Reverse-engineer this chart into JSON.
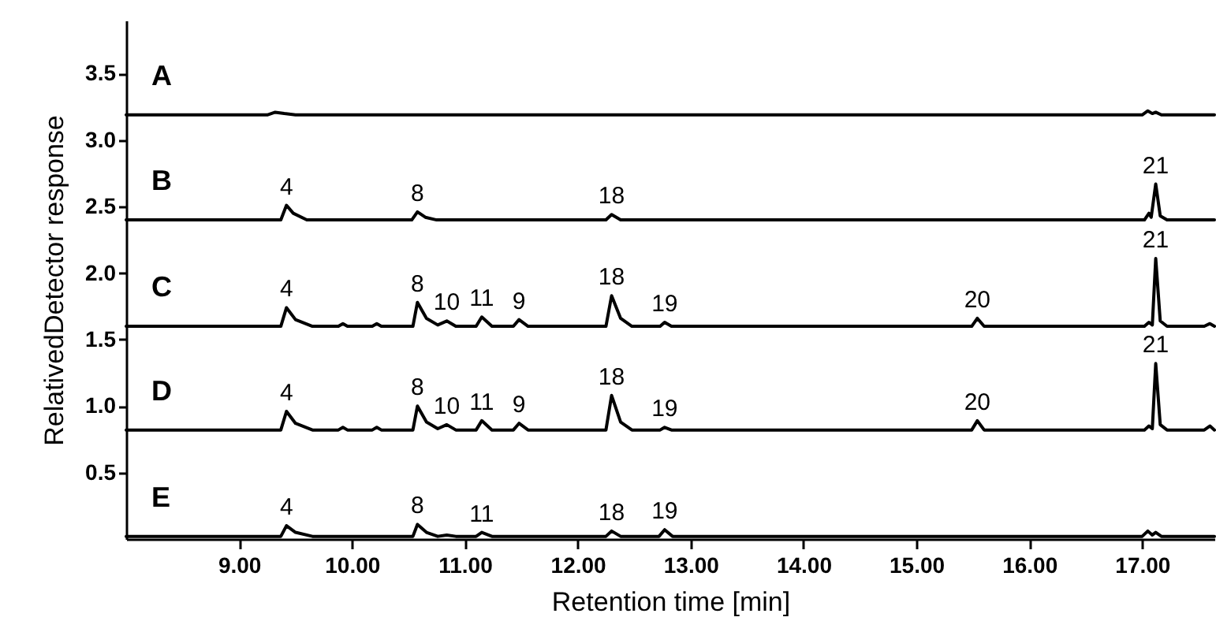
{
  "chart_data": {
    "type": "line",
    "xlabel": "Retention time [min]",
    "ylabel": "RelativedDetector response",
    "xlim": [
      8.0,
      17.64
    ],
    "ylim": [
      0,
      3.9
    ],
    "xticks": [
      {
        "value": 9,
        "label": "9.00"
      },
      {
        "value": 10,
        "label": "10.00"
      },
      {
        "value": 11,
        "label": "11.00"
      },
      {
        "value": 12,
        "label": "12.00"
      },
      {
        "value": 13,
        "label": "13.00"
      },
      {
        "value": 14,
        "label": "14.00"
      },
      {
        "value": 15,
        "label": "15.00"
      },
      {
        "value": 16,
        "label": "16.00"
      },
      {
        "value": 17,
        "label": "17.00"
      }
    ],
    "yticks": [
      0.5,
      {
        "value": 1,
        "label": "1.0"
      },
      1.5,
      {
        "value": 2,
        "label": "2.0"
      },
      2.5,
      {
        "value": 3,
        "label": "3.0"
      },
      3.5
    ],
    "grid": false,
    "marker": "none",
    "line_style": "solid",
    "series": [
      {
        "name": "A",
        "color": "#000000",
        "x": [
          8.0,
          9.25,
          9.32,
          9.4,
          9.5,
          17.0,
          17.05,
          17.09,
          17.12,
          17.17,
          17.64
        ],
        "values": [
          3.19,
          3.19,
          3.21,
          3.2,
          3.19,
          3.19,
          3.22,
          3.2,
          3.21,
          3.19,
          3.19
        ]
      },
      {
        "name": "B",
        "color": "#000000",
        "x": [
          8.0,
          9.37,
          9.42,
          9.48,
          9.6,
          10.53,
          10.58,
          10.65,
          10.75,
          12.25,
          12.3,
          12.38,
          17.02,
          17.06,
          17.08,
          17.12,
          17.16,
          17.22,
          17.64
        ],
        "values": [
          2.4,
          2.4,
          2.51,
          2.45,
          2.4,
          2.4,
          2.46,
          2.42,
          2.4,
          2.4,
          2.44,
          2.4,
          2.4,
          2.45,
          2.42,
          2.67,
          2.43,
          2.4,
          2.4
        ]
      },
      {
        "name": "C",
        "color": "#000000",
        "x": [
          8.0,
          9.37,
          9.42,
          9.5,
          9.65,
          9.88,
          9.92,
          9.96,
          10.18,
          10.22,
          10.26,
          10.54,
          10.58,
          10.66,
          10.76,
          10.84,
          10.92,
          11.1,
          11.15,
          11.24,
          11.43,
          11.48,
          11.56,
          12.25,
          12.3,
          12.38,
          12.48,
          12.73,
          12.77,
          12.83,
          15.49,
          15.54,
          15.6,
          17.02,
          17.06,
          17.09,
          17.12,
          17.16,
          17.22,
          17.55,
          17.6,
          17.64
        ],
        "values": [
          1.6,
          1.6,
          1.74,
          1.65,
          1.6,
          1.6,
          1.62,
          1.6,
          1.6,
          1.62,
          1.6,
          1.6,
          1.78,
          1.66,
          1.61,
          1.64,
          1.6,
          1.6,
          1.67,
          1.6,
          1.6,
          1.65,
          1.6,
          1.6,
          1.83,
          1.66,
          1.6,
          1.6,
          1.63,
          1.6,
          1.6,
          1.66,
          1.6,
          1.6,
          1.63,
          1.61,
          2.11,
          1.64,
          1.6,
          1.6,
          1.62,
          1.6
        ]
      },
      {
        "name": "D",
        "color": "#000000",
        "x": [
          8.0,
          9.37,
          9.42,
          9.5,
          9.65,
          9.88,
          9.92,
          9.96,
          10.18,
          10.22,
          10.26,
          10.54,
          10.58,
          10.66,
          10.76,
          10.84,
          10.92,
          11.1,
          11.15,
          11.24,
          11.43,
          11.48,
          11.56,
          12.25,
          12.3,
          12.38,
          12.48,
          12.73,
          12.77,
          12.83,
          15.49,
          15.54,
          15.6,
          17.02,
          17.06,
          17.09,
          17.12,
          17.16,
          17.22,
          17.55,
          17.6,
          17.64
        ],
        "values": [
          0.82,
          0.82,
          0.96,
          0.87,
          0.82,
          0.82,
          0.84,
          0.82,
          0.82,
          0.84,
          0.82,
          0.82,
          1.0,
          0.88,
          0.83,
          0.86,
          0.82,
          0.82,
          0.89,
          0.82,
          0.82,
          0.87,
          0.82,
          0.82,
          1.08,
          0.88,
          0.82,
          0.82,
          0.84,
          0.82,
          0.82,
          0.89,
          0.82,
          0.82,
          0.85,
          0.83,
          1.32,
          0.86,
          0.82,
          0.82,
          0.85,
          0.82
        ]
      },
      {
        "name": "E",
        "color": "#000000",
        "x": [
          8.0,
          9.37,
          9.42,
          9.5,
          9.65,
          10.54,
          10.58,
          10.66,
          10.76,
          10.84,
          10.92,
          11.1,
          11.15,
          11.24,
          12.25,
          12.3,
          12.38,
          12.72,
          12.77,
          12.84,
          17.0,
          17.05,
          17.09,
          17.12,
          17.17,
          17.64
        ],
        "values": [
          0.02,
          0.02,
          0.1,
          0.05,
          0.02,
          0.02,
          0.11,
          0.05,
          0.02,
          0.03,
          0.02,
          0.02,
          0.05,
          0.02,
          0.02,
          0.06,
          0.02,
          0.02,
          0.07,
          0.02,
          0.02,
          0.06,
          0.03,
          0.05,
          0.02,
          0.02
        ]
      }
    ],
    "annotations": [
      {
        "text": "4",
        "x": 9.42,
        "y": 2.51
      },
      {
        "text": "8",
        "x": 10.58,
        "y": 2.46
      },
      {
        "text": "18",
        "x": 12.3,
        "y": 2.44
      },
      {
        "text": "21",
        "x": 17.12,
        "y": 2.67
      },
      {
        "text": "4",
        "x": 9.42,
        "y": 1.74
      },
      {
        "text": "8",
        "x": 10.58,
        "y": 1.78
      },
      {
        "text": "10",
        "x": 10.84,
        "y": 1.64
      },
      {
        "text": "11",
        "x": 11.15,
        "y": 1.67
      },
      {
        "text": "9",
        "x": 11.48,
        "y": 1.65
      },
      {
        "text": "18",
        "x": 12.3,
        "y": 1.83
      },
      {
        "text": "19",
        "x": 12.77,
        "y": 1.63
      },
      {
        "text": "20",
        "x": 15.54,
        "y": 1.66
      },
      {
        "text": "21",
        "x": 17.12,
        "y": 2.11
      },
      {
        "text": "4",
        "x": 9.42,
        "y": 0.96
      },
      {
        "text": "8",
        "x": 10.58,
        "y": 1.0
      },
      {
        "text": "10",
        "x": 10.84,
        "y": 0.86
      },
      {
        "text": "11",
        "x": 11.15,
        "y": 0.89
      },
      {
        "text": "9",
        "x": 11.48,
        "y": 0.87
      },
      {
        "text": "18",
        "x": 12.3,
        "y": 1.08
      },
      {
        "text": "19",
        "x": 12.77,
        "y": 0.84
      },
      {
        "text": "20",
        "x": 15.54,
        "y": 0.89
      },
      {
        "text": "21",
        "x": 17.12,
        "y": 1.32
      },
      {
        "text": "4",
        "x": 9.42,
        "y": 0.1
      },
      {
        "text": "8",
        "x": 10.58,
        "y": 0.11
      },
      {
        "text": "11",
        "x": 11.15,
        "y": 0.05
      },
      {
        "text": "18",
        "x": 12.3,
        "y": 0.06
      },
      {
        "text": "19",
        "x": 12.77,
        "y": 0.07
      }
    ]
  }
}
